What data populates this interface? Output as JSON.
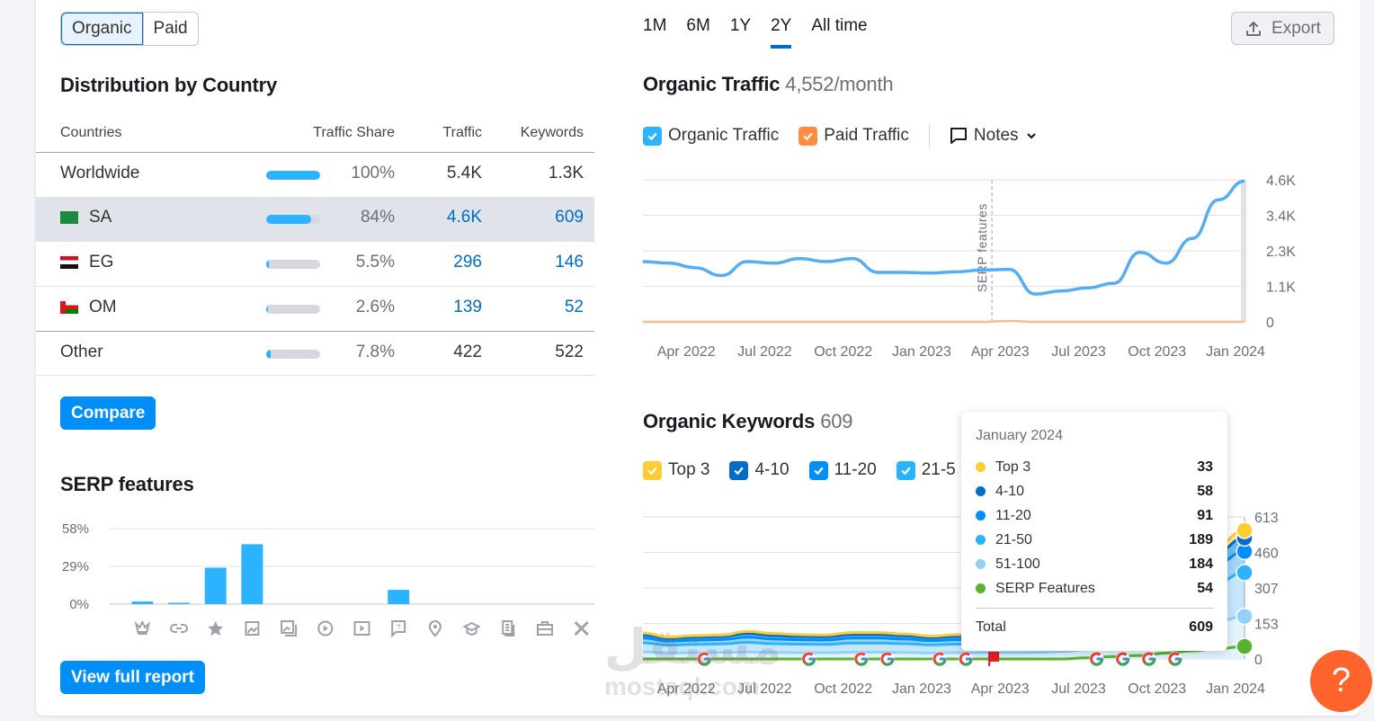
{
  "source_toggle": {
    "options": [
      "Organic",
      "Paid"
    ],
    "selected": "Organic"
  },
  "distribution": {
    "title": "Distribution by Country",
    "columns": [
      "Countries",
      "Traffic Share",
      "Traffic",
      "Keywords"
    ],
    "rows": [
      {
        "name": "Worldwide",
        "flag": "",
        "share": "100%",
        "share_pct": 100,
        "traffic": "5.4K",
        "keywords": "1.3K",
        "linked": false
      },
      {
        "name": "SA",
        "flag": "saudi-arabia-flag",
        "share": "84%",
        "share_pct": 84,
        "traffic": "4.6K",
        "keywords": "609",
        "linked": true
      },
      {
        "name": "EG",
        "flag": "egypt-flag",
        "share": "5.5%",
        "share_pct": 5.5,
        "traffic": "296",
        "keywords": "146",
        "linked": true
      },
      {
        "name": "OM",
        "flag": "oman-flag",
        "share": "2.6%",
        "share_pct": 2.6,
        "traffic": "139",
        "keywords": "52",
        "linked": true
      },
      {
        "name": "Other",
        "flag": "",
        "share": "7.8%",
        "share_pct": 7.8,
        "traffic": "422",
        "keywords": "522",
        "linked": false
      }
    ],
    "compare_label": "Compare"
  },
  "serp_features": {
    "title": "SERP features",
    "view_report_label": "View full report"
  },
  "periods": {
    "options": [
      "1M",
      "6M",
      "1Y",
      "2Y",
      "All time"
    ],
    "selected": "2Y"
  },
  "export_label": "Export",
  "organic_traffic": {
    "title": "Organic Traffic",
    "value": "4,552/month",
    "legend": [
      {
        "label": "Organic Traffic",
        "color": "#2bb3ff",
        "checked": true
      },
      {
        "label": "Paid Traffic",
        "color": "#ff8c43",
        "checked": true
      }
    ],
    "notes_label": "Notes",
    "annotation": "SERP features"
  },
  "organic_keywords": {
    "title": "Organic Keywords",
    "value": "609",
    "legend": [
      {
        "label": "Top 3",
        "color": "#ffcc33",
        "checked": true
      },
      {
        "label": "4-10",
        "color": "#006dca",
        "checked": true
      },
      {
        "label": "11-20",
        "color": "#008ff8",
        "checked": true
      },
      {
        "label": "21-5",
        "color": "#2bb3ff",
        "checked": true
      }
    ],
    "tooltip": {
      "title": "January 2024",
      "rows": [
        {
          "label": "Top 3",
          "value": "33",
          "color": "#ffcc33"
        },
        {
          "label": "4-10",
          "value": "58",
          "color": "#006dca"
        },
        {
          "label": "11-20",
          "value": "91",
          "color": "#008ff8"
        },
        {
          "label": "21-50",
          "value": "189",
          "color": "#2bb3ff"
        },
        {
          "label": "51-100",
          "value": "184",
          "color": "#91d0ff"
        },
        {
          "label": "SERP Features",
          "value": "54",
          "color": "#59b32d"
        }
      ],
      "total_label": "Total",
      "total_value": "609"
    }
  },
  "help_label": "?",
  "watermark": {
    "arabic": "مستقل",
    "latin": "mostaql.com"
  },
  "chart_data": [
    {
      "id": "serp-features",
      "type": "bar",
      "title": "SERP features",
      "categories": [
        "featured-snippet",
        "sitelinks",
        "reviews",
        "image",
        "image-pack",
        "video",
        "video-carousel",
        "people-also-ask",
        "local-pack",
        "knowledge-panel",
        "top-stories",
        "jobs",
        "twitter"
      ],
      "category_icons": [
        "crown-icon",
        "link-icon",
        "star-icon",
        "image-icon",
        "image-pack-icon",
        "video-icon",
        "video-carousel-icon",
        "faq-icon",
        "location-pin-icon",
        "graduation-cap-icon",
        "news-icon",
        "briefcase-icon",
        "x-logo-icon"
      ],
      "values": [
        2,
        1,
        28,
        46,
        0,
        0,
        0,
        11,
        0,
        0,
        0,
        0,
        0
      ],
      "yticks": [
        "0%",
        "29%",
        "58%"
      ],
      "ylim": [
        0,
        58
      ],
      "grid": true
    },
    {
      "id": "organic-traffic",
      "type": "line",
      "title": "Organic Traffic",
      "x": [
        "Feb 2022",
        "Mar 2022",
        "Apr 2022",
        "May 2022",
        "Jun 2022",
        "Jul 2022",
        "Aug 2022",
        "Sep 2022",
        "Oct 2022",
        "Nov 2022",
        "Dec 2022",
        "Jan 2023",
        "Feb 2023",
        "Mar 2023",
        "Apr 2023",
        "May 2023",
        "Jun 2023",
        "Jul 2023",
        "Aug 2023",
        "Sep 2023",
        "Oct 2023",
        "Nov 2023",
        "Dec 2023",
        "Jan 2024"
      ],
      "series": [
        {
          "name": "Organic Traffic",
          "color": "#2bb3ff",
          "values": [
            1950,
            1900,
            1750,
            1500,
            1950,
            1900,
            2050,
            1950,
            2050,
            1600,
            1600,
            1580,
            1620,
            1680,
            1700,
            900,
            1000,
            1100,
            1250,
            2250,
            1900,
            2700,
            3950,
            4552
          ]
        },
        {
          "name": "Paid Traffic",
          "color": "#ff8c43",
          "values": [
            0,
            0,
            0,
            0,
            0,
            0,
            0,
            0,
            0,
            0,
            0,
            0,
            0,
            0,
            30,
            0,
            0,
            0,
            0,
            0,
            0,
            0,
            0,
            0
          ]
        }
      ],
      "xticks": [
        "Apr 2022",
        "Jul 2022",
        "Oct 2022",
        "Jan 2023",
        "Apr 2023",
        "Jul 2023",
        "Oct 2023",
        "Jan 2024"
      ],
      "yticks": [
        "0",
        "1.1K",
        "2.3K",
        "3.4K",
        "4.6K"
      ],
      "ylim": [
        0,
        4600
      ],
      "annotations": [
        {
          "x": "Mar 2023",
          "label": "SERP features"
        }
      ],
      "grid": true
    },
    {
      "id": "organic-keywords",
      "type": "area",
      "title": "Organic Keywords",
      "x": [
        "Feb 2022",
        "Mar 2022",
        "Apr 2022",
        "May 2022",
        "Jun 2022",
        "Jul 2022",
        "Aug 2022",
        "Sep 2022",
        "Oct 2022",
        "Nov 2022",
        "Dec 2022",
        "Jan 2023",
        "Feb 2023",
        "Mar 2023",
        "Apr 2023",
        "May 2023",
        "Jun 2023",
        "Jul 2023",
        "Aug 2023",
        "Sep 2023",
        "Oct 2023",
        "Nov 2023",
        "Dec 2023",
        "Jan 2024"
      ],
      "series": [
        {
          "name": "Top 3",
          "color": "#ffcc33",
          "values": [
            8,
            6,
            7,
            7,
            9,
            9,
            8,
            8,
            9,
            9,
            8,
            7,
            8,
            8,
            8,
            8,
            9,
            10,
            12,
            15,
            20,
            25,
            30,
            33
          ]
        },
        {
          "name": "4-10",
          "color": "#006dca",
          "values": [
            14,
            12,
            13,
            13,
            16,
            15,
            14,
            14,
            15,
            15,
            14,
            13,
            14,
            14,
            14,
            14,
            15,
            18,
            22,
            28,
            35,
            45,
            52,
            58
          ]
        },
        {
          "name": "11-20",
          "color": "#008ff8",
          "values": [
            20,
            17,
            18,
            19,
            22,
            20,
            19,
            19,
            21,
            21,
            20,
            18,
            19,
            19,
            19,
            20,
            22,
            26,
            32,
            42,
            55,
            70,
            82,
            91
          ]
        },
        {
          "name": "21-50",
          "color": "#2bb3ff",
          "values": [
            40,
            34,
            36,
            37,
            42,
            38,
            37,
            36,
            40,
            40,
            38,
            35,
            37,
            37,
            37,
            38,
            42,
            50,
            62,
            80,
            105,
            140,
            170,
            189
          ]
        },
        {
          "name": "51-100",
          "color": "#91d0ff",
          "values": [
            30,
            26,
            27,
            28,
            30,
            28,
            27,
            27,
            29,
            29,
            28,
            26,
            27,
            27,
            27,
            28,
            32,
            40,
            55,
            80,
            110,
            140,
            165,
            184
          ]
        },
        {
          "name": "SERP Features",
          "color": "#59b32d",
          "values": [
            0,
            0,
            0,
            0,
            0,
            0,
            0,
            0,
            0,
            0,
            0,
            0,
            0,
            0,
            0,
            0,
            0,
            5,
            10,
            15,
            25,
            35,
            45,
            54
          ]
        }
      ],
      "xticks": [
        "Apr 2022",
        "Jul 2022",
        "Oct 2022",
        "Jan 2023",
        "Apr 2023",
        "Jul 2023",
        "Oct 2023",
        "Jan 2024"
      ],
      "yticks": [
        "0",
        "153",
        "307",
        "460",
        "613"
      ],
      "ylim": [
        0,
        613
      ],
      "google_update_markers": [
        "Apr 2022",
        "Aug 2022",
        "Oct 2022",
        "Nov 2022",
        "Jan 2023",
        "Feb 2023",
        "Jul 2023",
        "Aug 2023",
        "Sep 2023",
        "Oct 2023"
      ],
      "flag_markers": [
        "Mar 2023"
      ],
      "grid": true
    }
  ]
}
